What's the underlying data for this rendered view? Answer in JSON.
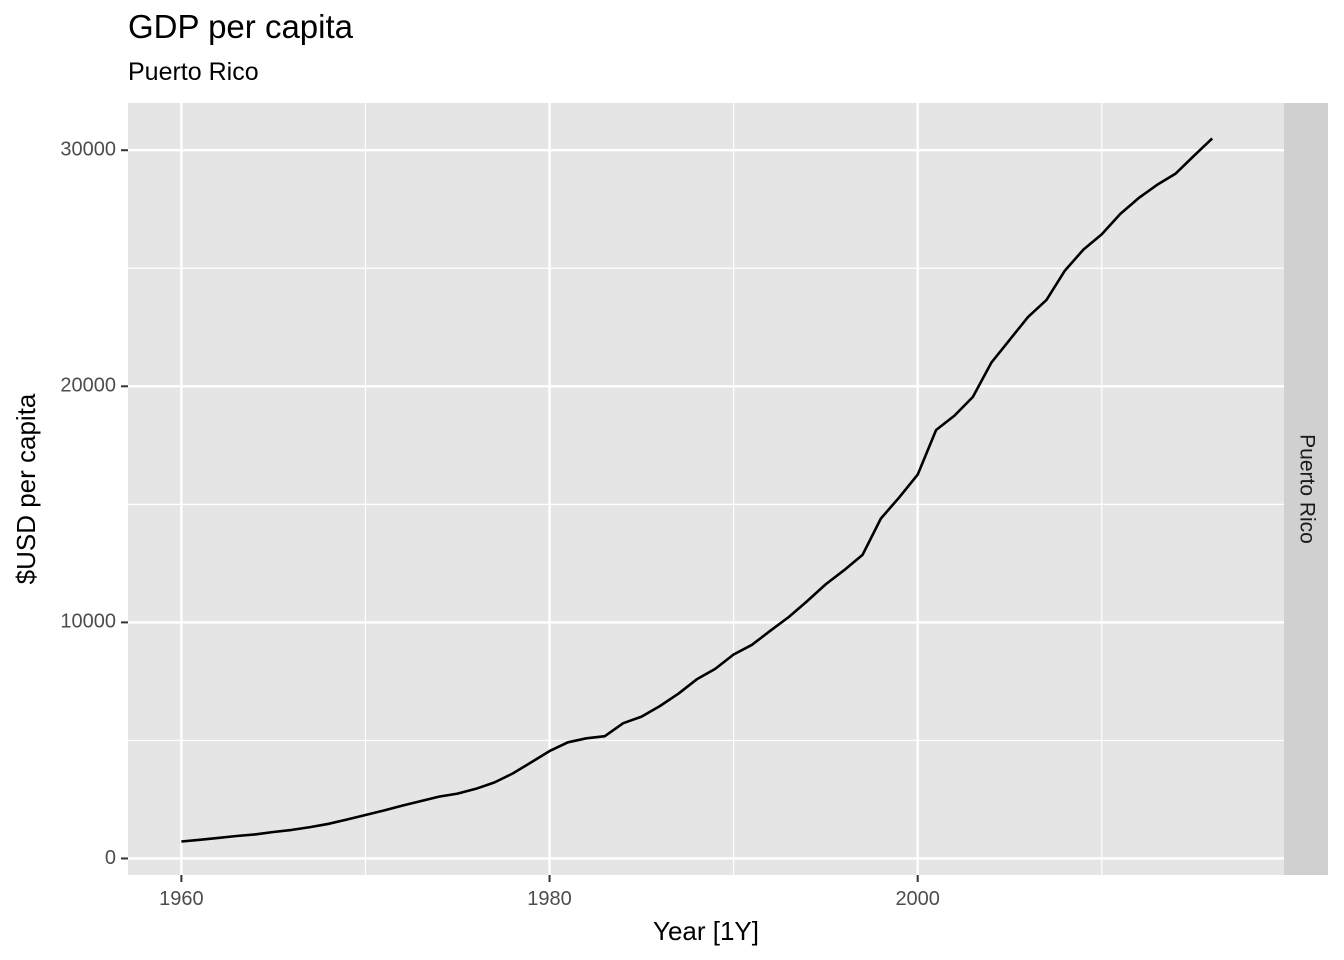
{
  "chart_data": {
    "type": "line",
    "title": "GDP per capita",
    "subtitle": "Puerto Rico",
    "xlabel": "Year [1Y]",
    "ylabel": "$USD per capita",
    "facet_label": "Puerto Rico",
    "xlim": [
      1957.1,
      2019.9
    ],
    "ylim": [
      -700,
      32000
    ],
    "x_ticks": [
      1960,
      1980,
      2000
    ],
    "x_minor_ticks": [
      1970,
      1990,
      2010
    ],
    "y_ticks": [
      0,
      10000,
      20000,
      30000
    ],
    "y_minor_ticks": [
      5000,
      15000,
      25000
    ],
    "grid": true,
    "colors": {
      "panel": "#e5e5e5",
      "grid": "#ffffff",
      "strip": "#d0d0d0",
      "line": "#000000"
    },
    "series": [
      {
        "x": [
          1960,
          1961,
          1962,
          1963,
          1964,
          1965,
          1966,
          1967,
          1968,
          1969,
          1970,
          1971,
          1972,
          1973,
          1974,
          1975,
          1976,
          1977,
          1978,
          1979,
          1980,
          1981,
          1982,
          1983,
          1984,
          1985,
          1986,
          1987,
          1988,
          1989,
          1990,
          1991,
          1992,
          1993,
          1994,
          1995,
          1996,
          1997,
          1998,
          1999,
          2000,
          2001,
          2002,
          2003,
          2004,
          2005,
          2006,
          2007,
          2008,
          2009,
          2010,
          2011,
          2012,
          2013,
          2014,
          2015,
          2016
        ],
        "y": [
          720,
          790,
          870,
          950,
          1020,
          1120,
          1210,
          1330,
          1470,
          1650,
          1840,
          2030,
          2240,
          2430,
          2620,
          2750,
          2950,
          3220,
          3600,
          4070,
          4550,
          4920,
          5090,
          5180,
          5730,
          6010,
          6460,
          6980,
          7590,
          8030,
          8640,
          9050,
          9650,
          10230,
          10900,
          11610,
          12210,
          12860,
          14400,
          15300,
          16260,
          18150,
          18760,
          19550,
          21000,
          21970,
          22940,
          23660,
          24900,
          25790,
          26440,
          27300,
          27970,
          28530,
          29000,
          29760,
          30500
        ]
      }
    ]
  }
}
